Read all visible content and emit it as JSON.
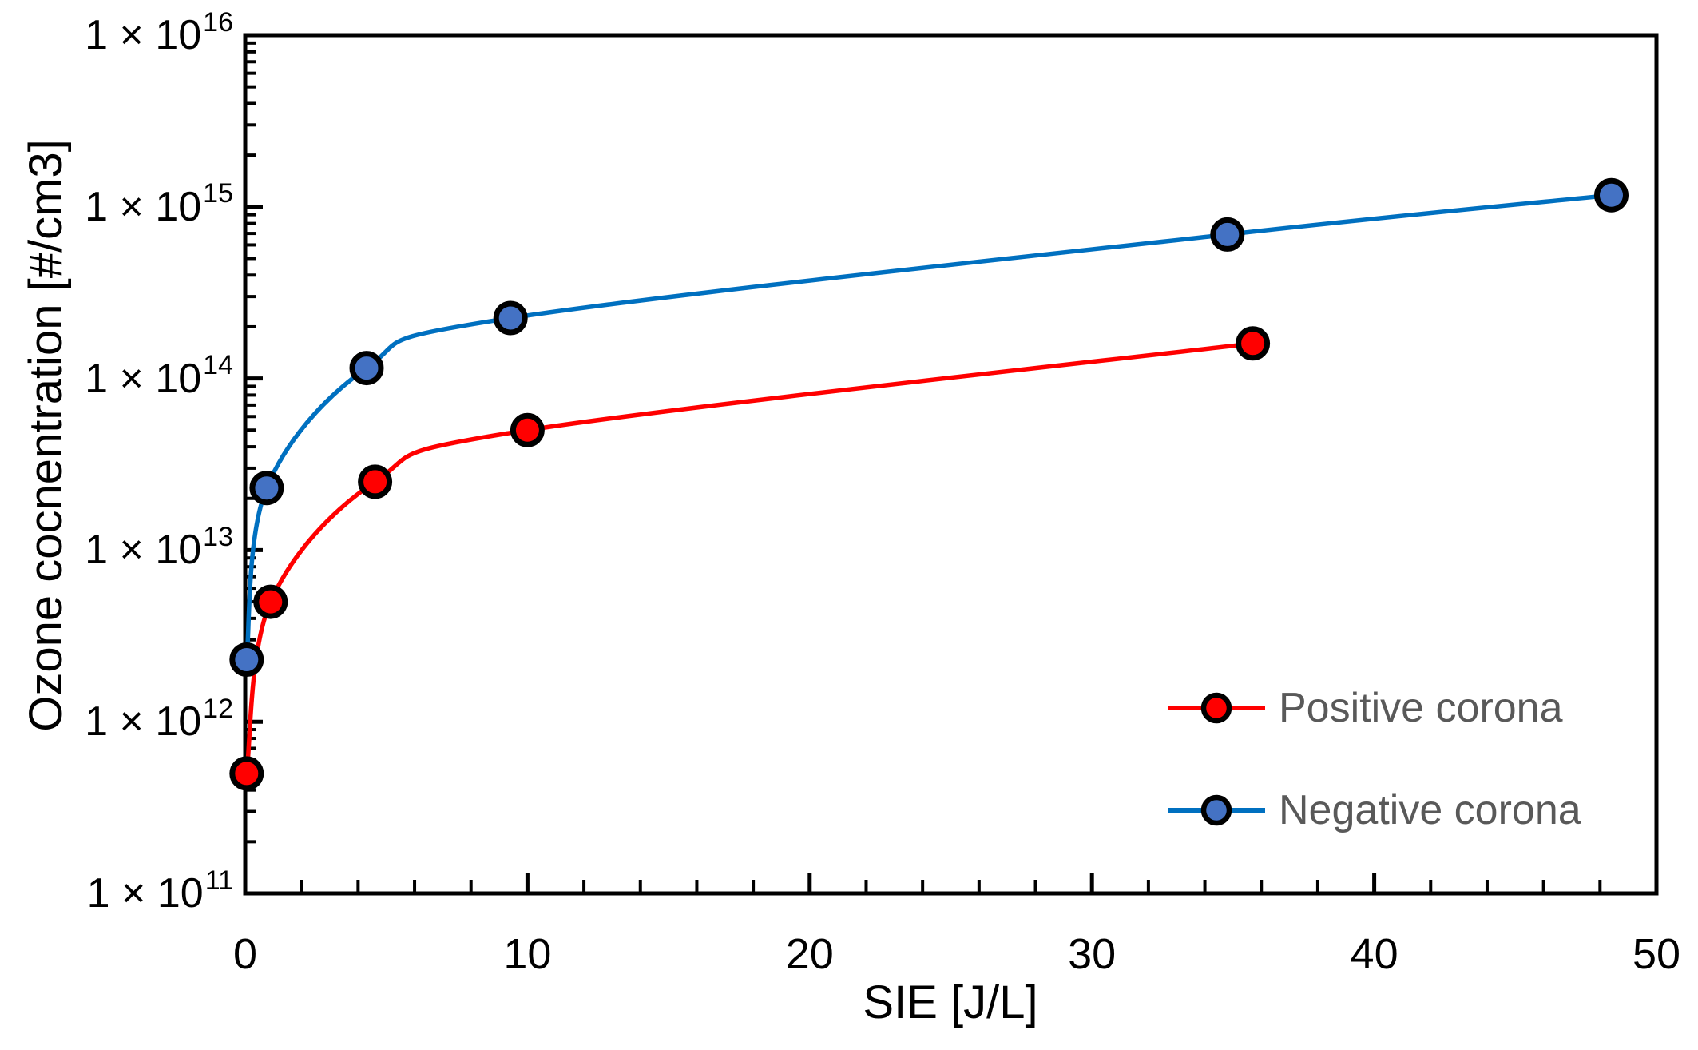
{
  "chart_data": {
    "type": "line",
    "title": "",
    "xlabel": "SIE [J/L]",
    "ylabel": "Ozone cocnentration [#/cm3]",
    "grid": false,
    "plot_border": true,
    "axis_color": "#000000",
    "marker_outline": "#000000",
    "x_axis": {
      "min": 0,
      "max": 50,
      "major_step": 10,
      "minor_step": 2,
      "tick_labels": [
        "0",
        "10",
        "20",
        "30",
        "40",
        "50"
      ]
    },
    "y_axis": {
      "scale": "log",
      "min_exp": 11,
      "max_exp": 16,
      "tick_prefix": "1 × 10",
      "tick_exponents": [
        11,
        12,
        13,
        14,
        15,
        16
      ],
      "tick_labels": [
        "1 × 10^11",
        "1 × 10^12",
        "1 × 10^13",
        "1 × 10^14",
        "1 × 10^15",
        "1 × 10^16"
      ]
    },
    "series": [
      {
        "name": "Positive corona",
        "line_color": "#FF0000",
        "marker_color": "#FF0000",
        "x": [
          0.05,
          0.9,
          4.6,
          10,
          35.7
        ],
        "y": [
          500000000000.0,
          5000000000000.0,
          25000000000000.0,
          50000000000000.0,
          160000000000000.0
        ]
      },
      {
        "name": "Negative corona",
        "line_color": "#0070C0",
        "marker_color": "#4472C4",
        "x": [
          0.05,
          0.76,
          4.3,
          9.4,
          34.8,
          48.4
        ],
        "y": [
          2300000000000.0,
          23000000000000.0,
          115000000000000.0,
          225000000000000.0,
          690000000000000.0,
          1170000000000000.0
        ]
      }
    ],
    "legend": {
      "position": "inside-right",
      "text_color": "#595959",
      "entries": [
        "Positive corona",
        "Negative corona"
      ]
    }
  }
}
